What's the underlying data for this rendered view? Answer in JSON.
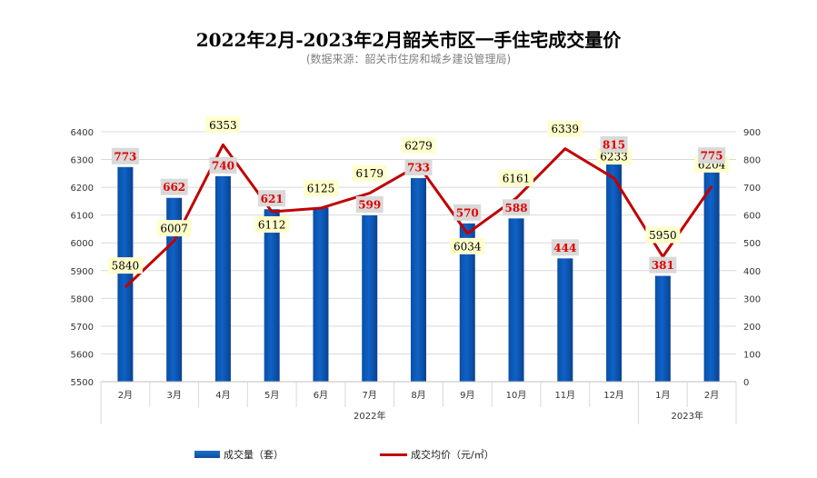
{
  "title": "2022年2月-2023年2月韶关市区一手住宅成交量价",
  "subtitle": "(数据来源：韶关市住房和城乡建设管理局)",
  "legend": {
    "bar_label": "成交量（套）",
    "line_label": "成交均价（元/㎡）"
  },
  "colors": {
    "bar": "#0f62c7",
    "line": "#c00000",
    "vol_label_text": "#e00000",
    "vol_label_bg": "#d9d9d9",
    "price_label_bg": "#ffffcc"
  },
  "chart_data": {
    "type": "bar",
    "categories": [
      "2月",
      "3月",
      "4月",
      "5月",
      "6月",
      "7月",
      "8月",
      "9月",
      "10月",
      "11月",
      "12月",
      "1月",
      "2月"
    ],
    "year_groups": [
      {
        "label": "2022年",
        "start": 0,
        "end": 10
      },
      {
        "label": "2023年",
        "start": 11,
        "end": 12
      }
    ],
    "left_axis": {
      "ticks": [
        "5500",
        "5600",
        "5700",
        "5800",
        "5900",
        "6000",
        "6100",
        "6200",
        "6300",
        "6400"
      ],
      "min": 5500,
      "max": 6400
    },
    "right_axis": {
      "ticks": [
        "0",
        "100",
        "200",
        "300",
        "400",
        "500",
        "600",
        "700",
        "800",
        "900"
      ],
      "min": 0,
      "max": 900
    },
    "series": [
      {
        "name": "成交量（套）",
        "kind": "bar",
        "axis": "right",
        "values": [
          773,
          662,
          740,
          621,
          627,
          599,
          733,
          570,
          588,
          444,
          815,
          381,
          775
        ],
        "labels": [
          "773",
          "662",
          "740",
          "621",
          "",
          "599",
          "733",
          "570",
          "588",
          "444",
          "815",
          "381",
          "775"
        ]
      },
      {
        "name": "成交均价（元/㎡）",
        "kind": "line",
        "axis": "left",
        "values": [
          5840,
          6007,
          6353,
          6112,
          6125,
          6179,
          6279,
          6034,
          6161,
          6339,
          6233,
          5950,
          6204
        ],
        "labels": [
          "5840",
          "6007",
          "6353",
          "6112",
          "6125",
          "6179",
          "6279",
          "6034",
          "6161",
          "6339",
          "6233",
          "5950",
          "6204"
        ]
      }
    ],
    "grid": true,
    "legend_position": "bottom"
  }
}
